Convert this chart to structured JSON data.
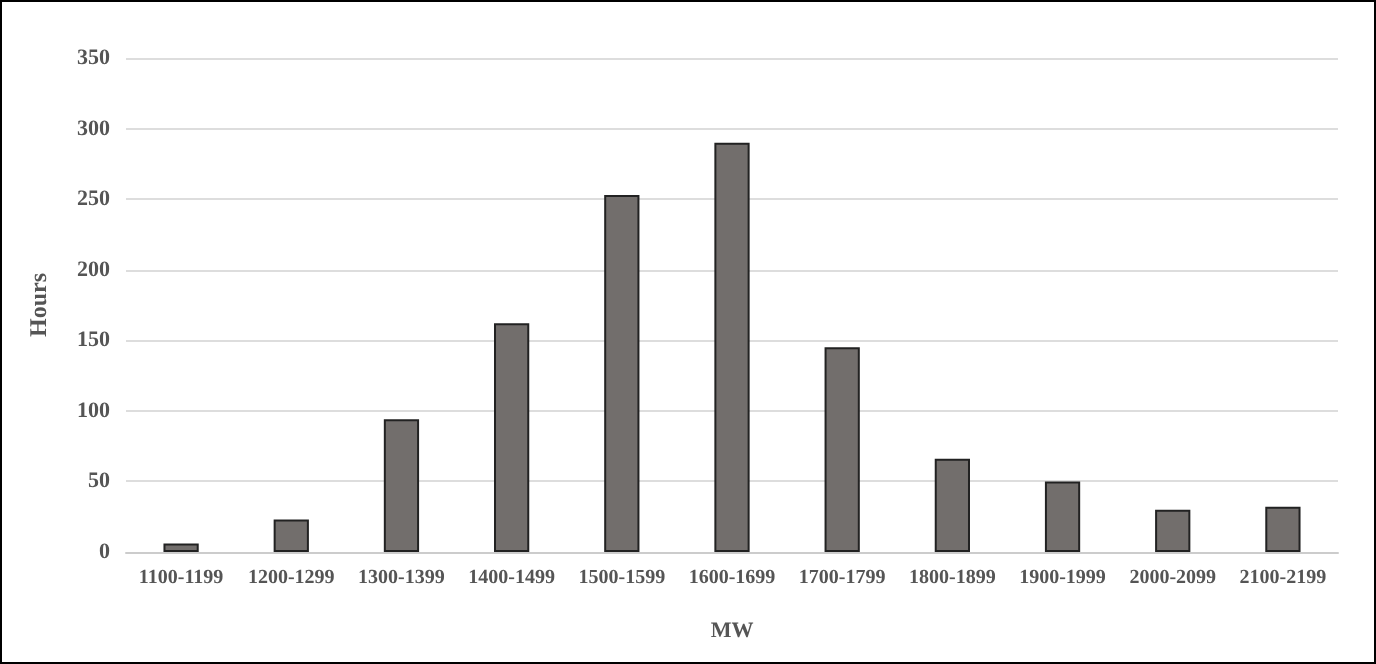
{
  "chart_data": {
    "type": "bar",
    "xlabel": "MW",
    "ylabel": "Hours",
    "categories": [
      "1100-1199",
      "1200-1299",
      "1300-1399",
      "1400-1499",
      "1500-1599",
      "1600-1699",
      "1700-1799",
      "1800-1899",
      "1900-1999",
      "2000-2099",
      "2100-2199"
    ],
    "values": [
      6,
      23,
      94,
      162,
      253,
      290,
      145,
      66,
      50,
      30,
      32
    ],
    "color": "#726e6c",
    "ylim": [
      0,
      350
    ],
    "yticks": [
      0,
      50,
      100,
      150,
      200,
      250,
      300,
      350
    ],
    "grid": "y"
  }
}
